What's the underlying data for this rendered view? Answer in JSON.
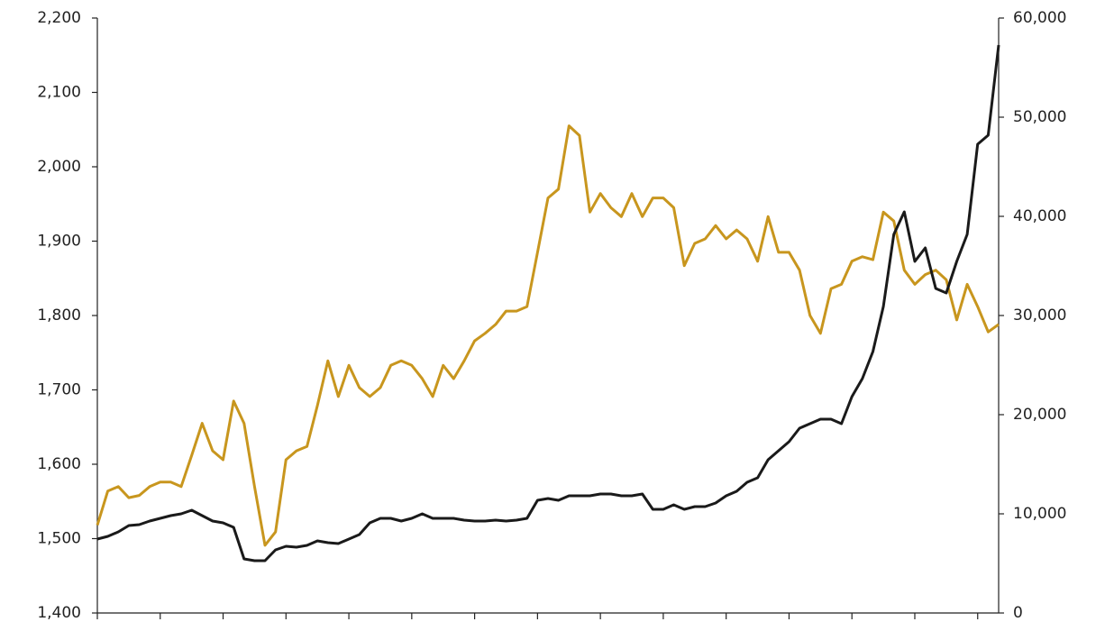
{
  "chart_data": {
    "type": "line",
    "categories": [
      null,
      null,
      null,
      null,
      null,
      null,
      null,
      null,
      null,
      null,
      null,
      null,
      null,
      null,
      null,
      null,
      null,
      null,
      null,
      null,
      null,
      null,
      null,
      null,
      null,
      null,
      null,
      null,
      null,
      null,
      null,
      null,
      null,
      null,
      null,
      null,
      null,
      null,
      null,
      null,
      null,
      null,
      null,
      null,
      null,
      null,
      null,
      null,
      null,
      null,
      null,
      null,
      null,
      null,
      null,
      null,
      null,
      null,
      null,
      null,
      null,
      null,
      null,
      null,
      null,
      null,
      null,
      null,
      null,
      null,
      null,
      null,
      null,
      null,
      null,
      null,
      null,
      null,
      null,
      null,
      null,
      null,
      null,
      null,
      null,
      null,
      null
    ],
    "series": [
      {
        "color": "#c8961e",
        "values": [
          1518,
          1564,
          1570,
          1555,
          1558,
          1570,
          1576,
          1576,
          1570,
          1612,
          1655,
          1618,
          1606,
          1685,
          1655,
          1570,
          1491,
          1509,
          1606,
          1618,
          1624,
          1679,
          1739,
          1691,
          1733,
          1703,
          1691,
          1703,
          1733,
          1739,
          1733,
          1715,
          1691,
          1733,
          1715,
          1739,
          1766,
          1776,
          1788,
          1806,
          1806,
          1812,
          1885,
          1958,
          1970,
          2055,
          2042,
          1939,
          1964,
          1945,
          1933,
          1964,
          1933,
          1958,
          1958,
          1945,
          1867,
          1897,
          1903,
          1921,
          1903,
          1915,
          1903,
          1873,
          1933,
          1885,
          1885,
          1861,
          1800,
          1776,
          1836,
          1842,
          1873,
          1879,
          1875,
          1939,
          1927,
          1861,
          1842,
          1855,
          1861,
          1848,
          1794,
          1842,
          1812,
          1778,
          1788
        ]
      },
      {
        "color": "#1a1a1a",
        "axis": "y2",
        "values": [
          7455,
          7727,
          8182,
          8818,
          8909,
          9273,
          9545,
          9818,
          10000,
          10364,
          9818,
          9273,
          9091,
          8636,
          5455,
          5273,
          5273,
          6364,
          6727,
          6636,
          6818,
          7273,
          7091,
          7000,
          7455,
          7909,
          9091,
          9545,
          9545,
          9273,
          9545,
          10000,
          9545,
          9545,
          9545,
          9364,
          9273,
          9273,
          9364,
          9273,
          9364,
          9545,
          11364,
          11545,
          11364,
          11818,
          11818,
          11818,
          12000,
          12000,
          11818,
          11818,
          12000,
          10455,
          10455,
          10909,
          10455,
          10727,
          10727,
          11091,
          11818,
          12273,
          13182,
          13636,
          15455,
          16364,
          17273,
          18636,
          19091,
          19545,
          19545,
          19091,
          21818,
          23636,
          26364,
          30909,
          38182,
          40455,
          35455,
          36818,
          32727,
          32273,
          35455,
          38182,
          47273,
          48182,
          57273
        ]
      }
    ],
    "ylim": [
      1400,
      2200
    ],
    "yticks": [
      {
        "value": 1400,
        "label": "1,400"
      },
      {
        "value": 1500,
        "label": "1,500"
      },
      {
        "value": 1600,
        "label": "1,600"
      },
      {
        "value": 1700,
        "label": "1,700"
      },
      {
        "value": 1800,
        "label": "1,800"
      },
      {
        "value": 1900,
        "label": "1,900"
      },
      {
        "value": 2000,
        "label": "2,000"
      },
      {
        "value": 2100,
        "label": "2,100"
      },
      {
        "value": 2200,
        "label": "2,200"
      }
    ],
    "y2lim": [
      0,
      60000
    ],
    "y2ticks": [
      0,
      {
        "value": 10000,
        "label": "10,000"
      },
      {
        "value": 20000,
        "label": "20,000"
      },
      {
        "value": 30000,
        "label": "30,000"
      },
      {
        "value": 40000,
        "label": "40,000"
      },
      {
        "value": 50000,
        "label": "50,000"
      },
      {
        "value": 60000,
        "label": "60,000"
      }
    ],
    "grid": false
  }
}
